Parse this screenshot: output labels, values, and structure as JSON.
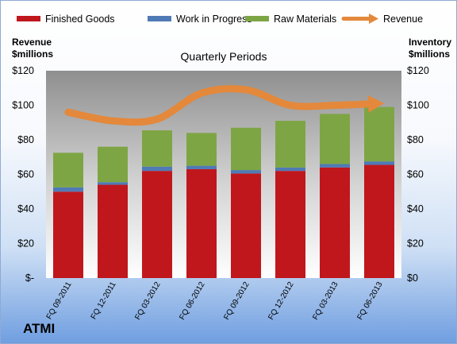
{
  "chart_data": {
    "type": "bar",
    "stacked": true,
    "title": "Quarterly Periods",
    "ylabel_left": "Revenue\n$millions",
    "ylabel_right": "Inventory\n$millions",
    "company": "ATMI",
    "categories": [
      "FQ 09-2011",
      "FQ 12-2011",
      "FQ 03-2012",
      "FQ 06-2012",
      "FQ 09-2012",
      "FQ 12-2012",
      "FQ 03-2013",
      "FQ 06-2013"
    ],
    "series": [
      {
        "name": "Finished Goods",
        "type": "bar",
        "color": "#c0171d",
        "values": [
          50,
          54,
          62,
          63,
          60.5,
          62,
          64,
          65.5
        ]
      },
      {
        "name": "Work in Progress",
        "type": "bar",
        "color": "#4f7ab5",
        "values": [
          2.5,
          1.5,
          2.5,
          2,
          2,
          2,
          2,
          2
        ]
      },
      {
        "name": "Raw Materials",
        "type": "bar",
        "color": "#7ea544",
        "values": [
          20,
          20.5,
          21,
          19,
          24.5,
          27,
          29,
          31.5
        ]
      },
      {
        "name": "Revenue",
        "type": "line",
        "color": "#e4883b",
        "values": [
          96,
          91,
          92,
          107,
          109,
          100,
          100,
          101
        ]
      }
    ],
    "yticks_left": [
      "$-",
      "$20",
      "$40",
      "$60",
      "$80",
      "$100",
      "$120"
    ],
    "yticks_right": [
      "$0",
      "$20",
      "$40",
      "$60",
      "$80",
      "$100",
      "$120"
    ],
    "ylim": [
      0,
      120
    ],
    "legend_position": "top",
    "grid": false
  }
}
